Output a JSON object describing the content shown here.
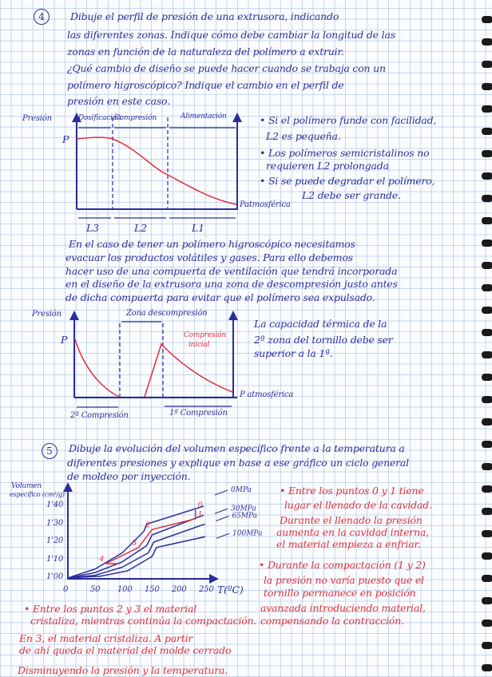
{
  "colors": {
    "ink_blue": "#2a2f9c",
    "ink_red": "#e0303c",
    "grid": "#8caadc"
  },
  "q4": {
    "number": "4",
    "lines": [
      "Dibuje el perfil de presión de una extrusora, indicando",
      "las diferentes zonas. Indique cómo debe cambiar la longitud de las",
      "zonas en función de la naturaleza del polímero a extruir.",
      "¿Qué cambio de diseño se puede hacer cuando se trabaja con un",
      "polímero higroscópico? Indique el cambio en el perfil de",
      "presión en este caso."
    ]
  },
  "diagram1": {
    "ylabel": "Presión",
    "p_label": "P",
    "zones": [
      "Dosificación",
      "Compresión",
      "Alimentación"
    ],
    "lengths": [
      "L3",
      "L2",
      "L1"
    ],
    "end_label": "Patmosférica"
  },
  "notes1": [
    "• Si el polímero funde con facilidad,",
    "L2 es pequeña.",
    "• Los polímeros semicristalinos no",
    "requieren L2 prolongada",
    "• Si se puede degradar el polímero,",
    "L2 debe ser grande."
  ],
  "para2": [
    "En el caso de tener un polímero higroscópico necesitamos",
    "evacuar los productos volátiles y gases. Para ello debemos",
    "hacer uso de una compuerta de ventilación que tendrá incorporada",
    "en el diseño de la extrusora una zona de descompresión justo antes",
    "de dicha compuerta para evitar que el polímero sea expulsado."
  ],
  "diagram2": {
    "ylabel": "Presión",
    "p_label": "P",
    "zone_label": "Zona descompresión",
    "red_label": [
      "Compresión",
      "inicial"
    ],
    "end_label": "P atmosférica",
    "left_label": "2ª Compresión",
    "right_label": "1ª Compresión"
  },
  "notes2": [
    "La capacidad térmica de la",
    "2ª zona del tornillo debe ser",
    "superior a la 1ª."
  ],
  "q5": {
    "number": "5",
    "lines": [
      "Dibuje la evolución del volumen específico frente a la temperatura a",
      "diferentes presiones y explique en base a ese gráfico un ciclo general",
      "de moldeo por inyección."
    ]
  },
  "chart_data": {
    "type": "line",
    "ylabel": [
      "Volumen",
      "específico (cm³/g)"
    ],
    "xlabel": "T(ºC)",
    "x_ticks": [
      "0",
      "50",
      "100",
      "150",
      "200",
      "250"
    ],
    "y_ticks": [
      "1'00",
      "1'10",
      "1'20",
      "1'30",
      "1'40"
    ],
    "xlim": [
      0,
      260
    ],
    "ylim": [
      1.0,
      1.45
    ],
    "series": [
      {
        "name": "0MPa",
        "points": [
          [
            0,
            1.0
          ],
          [
            50,
            1.05
          ],
          [
            100,
            1.14
          ],
          [
            140,
            1.26
          ],
          [
            145,
            1.3
          ],
          [
            250,
            1.4
          ]
        ]
      },
      {
        "name": "30MPa",
        "points": [
          [
            0,
            1.0
          ],
          [
            50,
            1.03
          ],
          [
            100,
            1.09
          ],
          [
            145,
            1.18
          ],
          [
            155,
            1.24
          ],
          [
            250,
            1.35
          ]
        ]
      },
      {
        "name": "65MPa",
        "points": [
          [
            0,
            1.0
          ],
          [
            50,
            1.015
          ],
          [
            100,
            1.06
          ],
          [
            148,
            1.14
          ],
          [
            158,
            1.2
          ],
          [
            252,
            1.3
          ]
        ]
      },
      {
        "name": "100MPa",
        "points": [
          [
            0,
            1.0
          ],
          [
            60,
            1.01
          ],
          [
            110,
            1.04
          ],
          [
            155,
            1.12
          ],
          [
            163,
            1.17
          ],
          [
            253,
            1.23
          ]
        ]
      }
    ],
    "cycle": {
      "labels": [
        "0",
        "1",
        "2",
        "3",
        "4"
      ],
      "points": [
        [
          235,
          1.38
        ],
        [
          235,
          1.33
        ],
        [
          155,
          1.27
        ],
        [
          130,
          1.17
        ],
        [
          70,
          1.08
        ]
      ],
      "tail": [
        [
          95,
          1.08
        ]
      ]
    }
  },
  "notes3": [
    "• Entre los puntos 0 y 1 tiene",
    "lugar el llenado de la cavidad.",
    "Durante el llenado la presión",
    "aumenta en la cavidad interna,",
    "el material empieza a enfriar.",
    "• Durante la compactación (1 y 2)",
    "la presión no varía puesto que el",
    "tornillo permanece en posición",
    "avanzada introduciendo material,",
    "compensando la contracción."
  ],
  "notes4": [
    "• Entre los puntos 2 y 3 el material",
    "cristaliza, mientras continúa la compactación.",
    "En 3, el material cristaliza. A partir",
    "de ahí queda el material del molde cerrado",
    "Disminuyendo la presión y la temperatura."
  ]
}
